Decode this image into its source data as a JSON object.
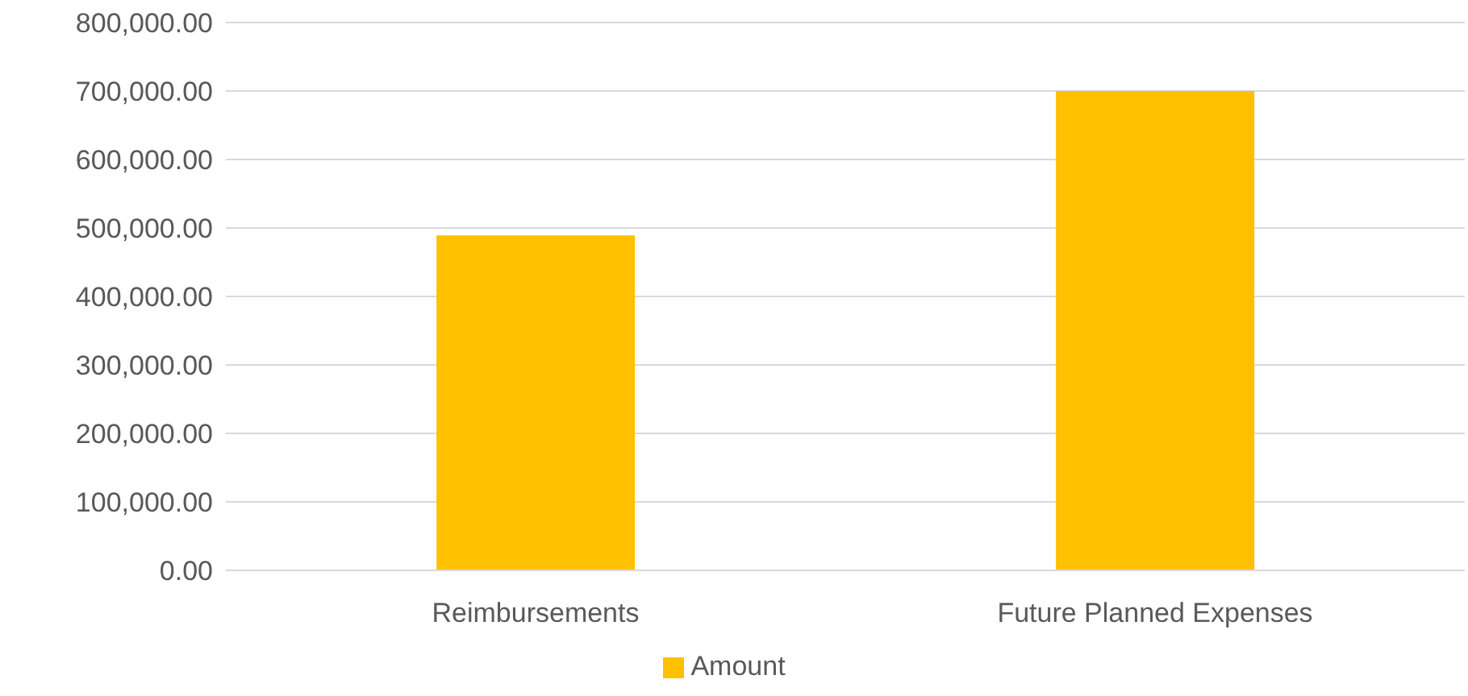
{
  "chart_data": {
    "type": "bar",
    "categories": [
      "Reimbursements",
      "Future Planned Expenses"
    ],
    "series": [
      {
        "name": "Amount",
        "color": "#ffc000",
        "values": [
          489000,
          700000
        ]
      }
    ],
    "ylim": [
      0,
      800000
    ],
    "yticks": [
      {
        "value": 0,
        "label": "0.00"
      },
      {
        "value": 100000,
        "label": "100,000.00"
      },
      {
        "value": 200000,
        "label": "200,000.00"
      },
      {
        "value": 300000,
        "label": "300,000.00"
      },
      {
        "value": 400000,
        "label": "400,000.00"
      },
      {
        "value": 500000,
        "label": "500,000.00"
      },
      {
        "value": 600000,
        "label": "600,000.00"
      },
      {
        "value": 700000,
        "label": "700,000.00"
      },
      {
        "value": 800000,
        "label": "800,000.00"
      }
    ],
    "grid": "y",
    "legend": "bottom"
  }
}
